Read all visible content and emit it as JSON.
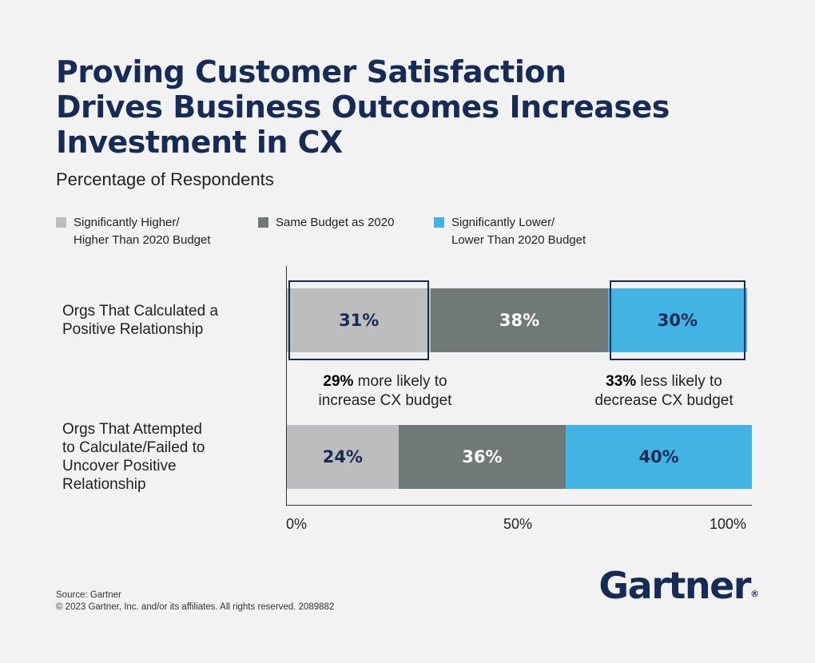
{
  "title_lines": [
    "Proving Customer Satisfaction",
    "Drives Business Outcomes Increases",
    "Investment in CX"
  ],
  "subtitle": "Percentage of Respondents",
  "colors": {
    "higher": "#bdbdc0",
    "same": "#6f7977",
    "lower": "#42b4e4",
    "navy": "#182b54",
    "white": "#ffffff"
  },
  "legend": [
    {
      "key": "higher",
      "line1": "Significantly Higher/",
      "line2": "Higher Than 2020 Budget"
    },
    {
      "key": "same",
      "line1": "Same Budget as 2020",
      "line2": ""
    },
    {
      "key": "lower",
      "line1": "Significantly Lower/",
      "line2": "Lower Than 2020 Budget"
    }
  ],
  "chart_data": {
    "type": "bar",
    "orientation": "horizontal",
    "stacked": true,
    "title": "Proving Customer Satisfaction Drives Business Outcomes Increases Investment in CX",
    "subtitle": "Percentage of Respondents",
    "categories": [
      "Orgs That Calculated a Positive Relationship",
      "Orgs That Attempted to Calculate/Failed to Uncover Positive Relationship"
    ],
    "category_label_lines": [
      [
        "Orgs That Calculated a",
        "Positive Relationship"
      ],
      [
        "Orgs That Attempted",
        "to Calculate/Failed to",
        "Uncover Positive",
        "Relationship"
      ]
    ],
    "series": [
      {
        "name": "Significantly Higher/Higher Than 2020 Budget",
        "key": "higher",
        "values": [
          31,
          24
        ],
        "labels": [
          "31%",
          "24%"
        ]
      },
      {
        "name": "Same Budget as 2020",
        "key": "same",
        "values": [
          38,
          36
        ],
        "labels": [
          "38%",
          "36%"
        ]
      },
      {
        "name": "Significantly Lower/Lower Than 2020 Budget",
        "key": "lower",
        "values": [
          30,
          40
        ],
        "labels": [
          "30%",
          "40%"
        ]
      }
    ],
    "xlim": [
      0,
      100
    ],
    "xticks": [
      0,
      50,
      100
    ],
    "xtick_labels": [
      "0%",
      "50%",
      "100%"
    ],
    "highlights": [
      {
        "row": 0,
        "series": 0
      },
      {
        "row": 0,
        "series": 2
      }
    ],
    "annotations": [
      {
        "bold": "29%",
        "text": " more likely to",
        "line2": "increase CX budget"
      },
      {
        "bold": "33%",
        "text": " less likely to",
        "line2": "decrease CX budget"
      }
    ],
    "legend_position": "top"
  },
  "footer": {
    "source": "Source: Gartner",
    "copyright": "© 2023 Gartner, Inc. and/or its affiliates. All rights reserved. 2089882"
  },
  "brand": {
    "name": "Gartner",
    "mark": "®"
  }
}
